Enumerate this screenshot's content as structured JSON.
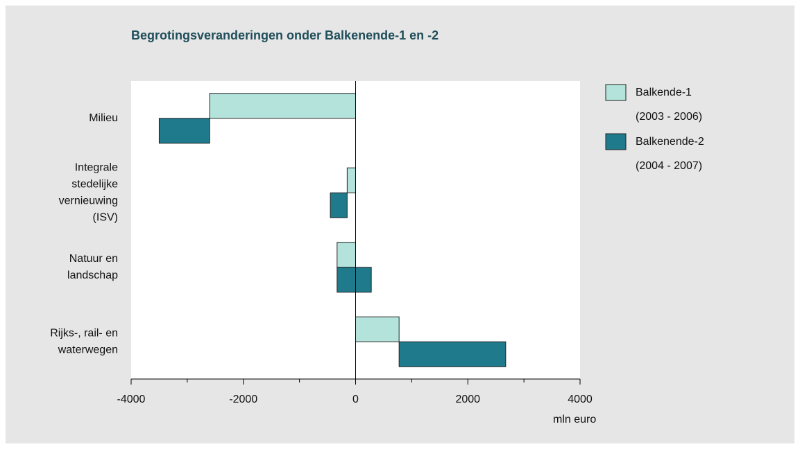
{
  "chart_data": {
    "type": "waterfall-bar",
    "title": "Begrotingsveranderingen onder Balkenende-1 en -2",
    "x_label": "mln euro",
    "categories": [
      [
        "Milieu"
      ],
      [
        "Integrale",
        "stedelijke",
        "vernieuwing",
        "(ISV)"
      ],
      [
        "Natuur en",
        "landschap"
      ],
      [
        "Rijks-, rail- en",
        "waterwegen"
      ]
    ],
    "series": [
      {
        "name": "Balkende-1",
        "period": "(2003 - 2006)",
        "color": "#b3e3da",
        "values": [
          -2600,
          -150,
          -330,
          775
        ]
      },
      {
        "name": "Balkenende-2",
        "period": "(2004 - 2007)",
        "color": "#1f7a8c",
        "values": [
          -900,
          -300,
          610,
          1900
        ]
      }
    ],
    "xlim": [
      -4000,
      4000
    ],
    "xticks": [
      -4000,
      -2000,
      0,
      2000,
      4000
    ],
    "xminor_ticks": [
      -3000,
      -1000,
      1000,
      3000
    ]
  }
}
